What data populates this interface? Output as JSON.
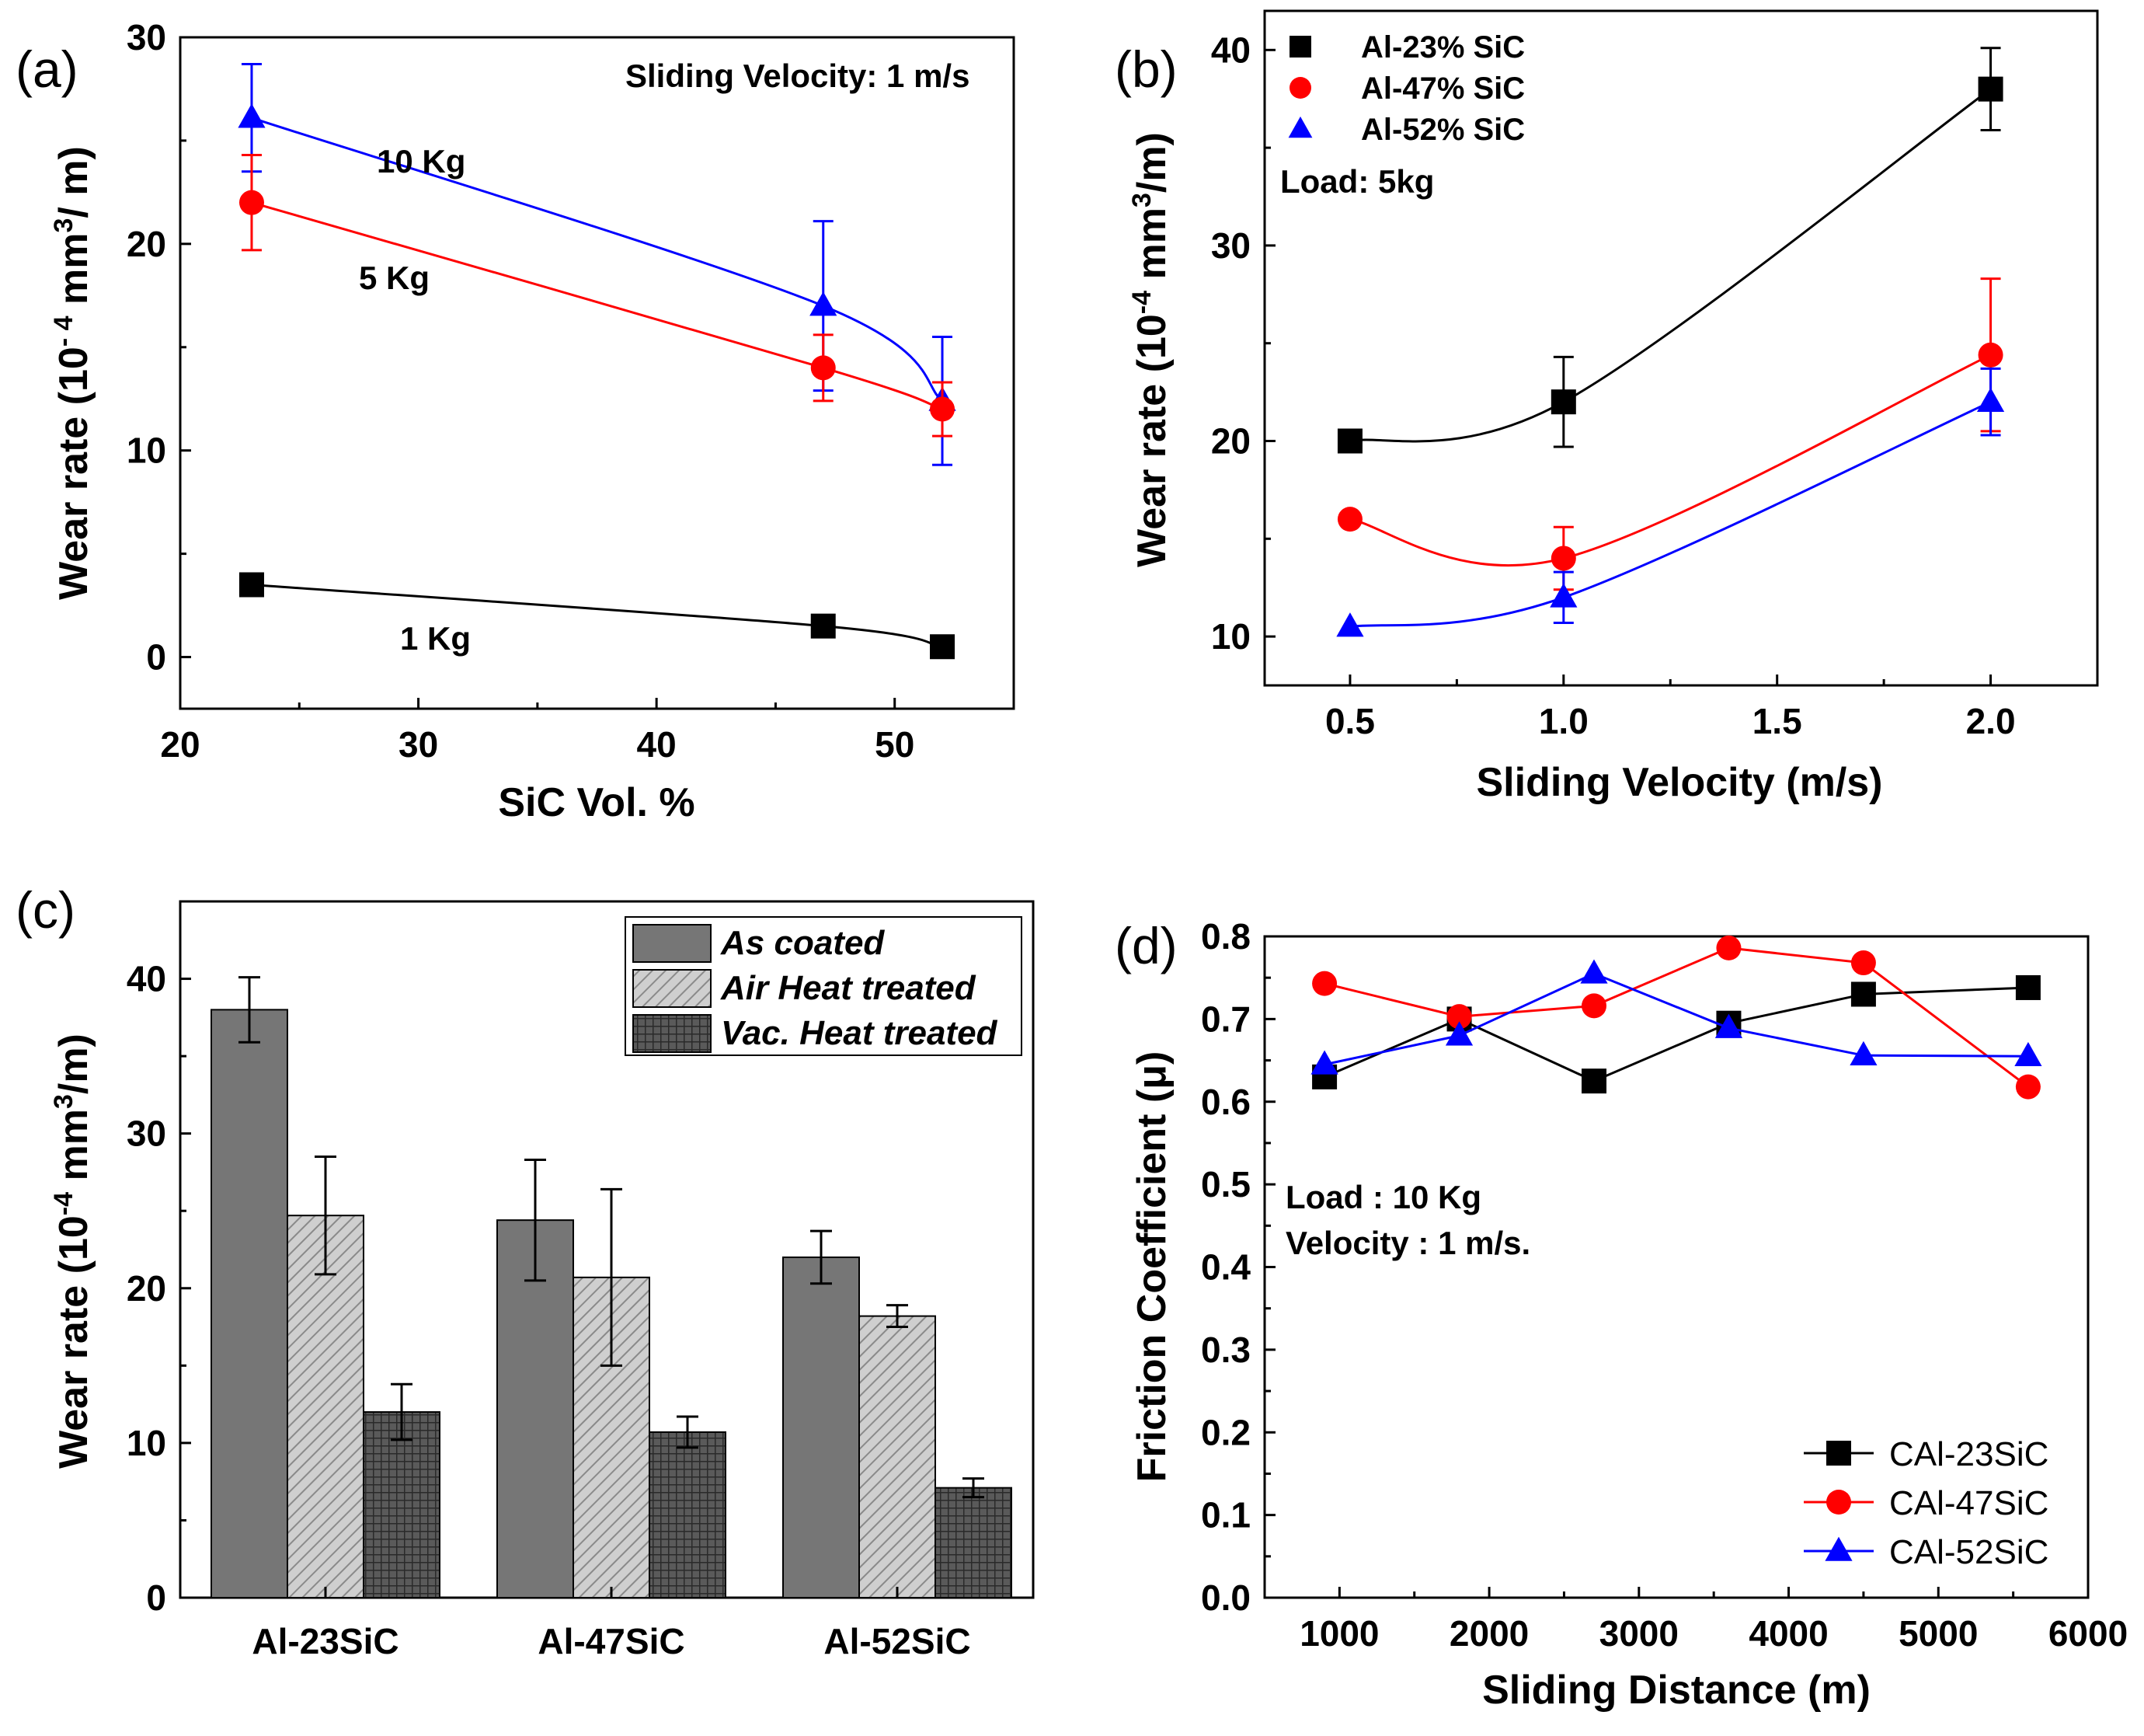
{
  "panels": {
    "a": {
      "label": "(a)",
      "annotation": "Sliding Velocity: 1 m/s",
      "curve_labels": [
        "10 Kg",
        "5 Kg",
        "1 Kg"
      ]
    },
    "b": {
      "label": "(b)",
      "annotation": "Load: 5kg"
    },
    "c": {
      "label": "(c)"
    },
    "d": {
      "label": "(d)",
      "annotation_line1": "Load : 10 Kg",
      "annotation_line2": "Velocity : 1 m/s."
    }
  },
  "colors": {
    "black": "#000000",
    "red": "#ff0000",
    "blue": "#0000ff",
    "bar_as_coated": "#767676",
    "bar_air": "#c4c4c4",
    "bar_vac": "#505050"
  },
  "chart_data": [
    {
      "id": "a",
      "type": "scatter",
      "xlabel": "SiC Vol. %",
      "ylabel": "Wear rate (10^-4 mm^3/ m)",
      "xlim": [
        20,
        55
      ],
      "ylim": [
        -2.5,
        30
      ],
      "xticks": [
        20,
        30,
        40,
        50
      ],
      "yticks": [
        0,
        10,
        20,
        30
      ],
      "series": [
        {
          "name": "10 Kg",
          "color": "#0000ff",
          "marker": "triangle",
          "x": [
            23,
            47,
            52
          ],
          "y": [
            26.1,
            17,
            12.4
          ],
          "err": [
            2.6,
            4.1,
            3.1
          ]
        },
        {
          "name": "5 Kg",
          "color": "#ff0000",
          "marker": "circle",
          "x": [
            23,
            47,
            52
          ],
          "y": [
            22,
            14,
            12
          ],
          "err": [
            2.3,
            1.6,
            1.3
          ]
        },
        {
          "name": "1 Kg",
          "color": "#000000",
          "marker": "square",
          "x": [
            23,
            47,
            52
          ],
          "y": [
            3.5,
            1.5,
            0.5
          ],
          "err": [
            0,
            0,
            0
          ]
        }
      ]
    },
    {
      "id": "b",
      "type": "scatter",
      "xlabel": "Sliding Velocity (m/s)",
      "ylabel": "Wear rate (10^-4 mm^3/m)",
      "xlim": [
        0.3,
        2.25
      ],
      "ylim": [
        7.5,
        42
      ],
      "xticks": [
        0.5,
        1.0,
        1.5,
        2.0
      ],
      "xtick_labels": [
        "0.5",
        "1.0",
        "1.5",
        "2.0"
      ],
      "yticks": [
        10,
        20,
        30,
        40
      ],
      "legend": [
        "Al-23% SiC",
        "Al-47% SiC",
        "Al-52% SiC"
      ],
      "series": [
        {
          "name": "Al-23% SiC",
          "color": "#000000",
          "marker": "square",
          "x": [
            0.5,
            1.0,
            2.0
          ],
          "y": [
            20,
            22,
            38
          ],
          "err": [
            0.4,
            2.3,
            2.1
          ]
        },
        {
          "name": "Al-47% SiC",
          "color": "#ff0000",
          "marker": "circle",
          "x": [
            0.5,
            1.0,
            2.0
          ],
          "y": [
            16,
            14,
            24.4
          ],
          "err": [
            0,
            1.6,
            3.9
          ]
        },
        {
          "name": "Al-52% SiC",
          "color": "#0000ff",
          "marker": "triangle",
          "x": [
            0.5,
            1.0,
            2.0
          ],
          "y": [
            10.5,
            12,
            22
          ],
          "err": [
            0,
            1.3,
            1.7
          ]
        }
      ]
    },
    {
      "id": "c",
      "type": "bar",
      "categories": [
        "Al-23SiC",
        "Al-47SiC",
        "Al-52SiC"
      ],
      "ylabel": "Wear rate (10^-4 mm^3/m)",
      "ylim": [
        0,
        45
      ],
      "yticks": [
        0,
        10,
        20,
        30,
        40
      ],
      "legend": [
        "As coated",
        "Air Heat treated",
        "Vac. Heat treated"
      ],
      "series": [
        {
          "name": "As coated",
          "values": [
            38,
            24.4,
            22
          ],
          "err": [
            2.1,
            3.9,
            1.7
          ]
        },
        {
          "name": "Air Heat treated",
          "values": [
            24.7,
            20.7,
            18.2
          ],
          "err": [
            3.8,
            5.7,
            0.7
          ]
        },
        {
          "name": "Vac. Heat treated",
          "values": [
            12,
            10.7,
            7.1
          ],
          "err": [
            1.8,
            1.0,
            0.6
          ]
        }
      ]
    },
    {
      "id": "d",
      "type": "line",
      "xlabel": "Sliding Distance (m)",
      "ylabel": "Friction Coefficient (μ)",
      "xlim": [
        500,
        6000
      ],
      "ylim": [
        0,
        0.8
      ],
      "xticks": [
        1000,
        2000,
        3000,
        4000,
        5000,
        6000
      ],
      "yticks": [
        0.0,
        0.1,
        0.2,
        0.3,
        0.4,
        0.5,
        0.6,
        0.7,
        0.8
      ],
      "ytick_labels": [
        "0.0",
        "0.1",
        "0.2",
        "0.3",
        "0.4",
        "0.5",
        "0.6",
        "0.7",
        "0.8"
      ],
      "legend": [
        "CAl-23SiC",
        "CAl-47SiC",
        "CAl-52SiC"
      ],
      "series": [
        {
          "name": "CAl-23SiC",
          "color": "#000000",
          "marker": "square",
          "x": [
            900,
            1800,
            2700,
            3600,
            4500,
            5600
          ],
          "y": [
            0.63,
            0.7,
            0.625,
            0.695,
            0.73,
            0.738
          ]
        },
        {
          "name": "CAl-47SiC",
          "color": "#ff0000",
          "marker": "circle",
          "x": [
            900,
            1800,
            2700,
            3600,
            4500,
            5600
          ],
          "y": [
            0.743,
            0.703,
            0.716,
            0.786,
            0.768,
            0.618
          ]
        },
        {
          "name": "CAl-52SiC",
          "color": "#0000ff",
          "marker": "triangle",
          "x": [
            900,
            1800,
            2700,
            3600,
            4500,
            5600
          ],
          "y": [
            0.645,
            0.68,
            0.755,
            0.689,
            0.656,
            0.655
          ]
        }
      ]
    }
  ]
}
